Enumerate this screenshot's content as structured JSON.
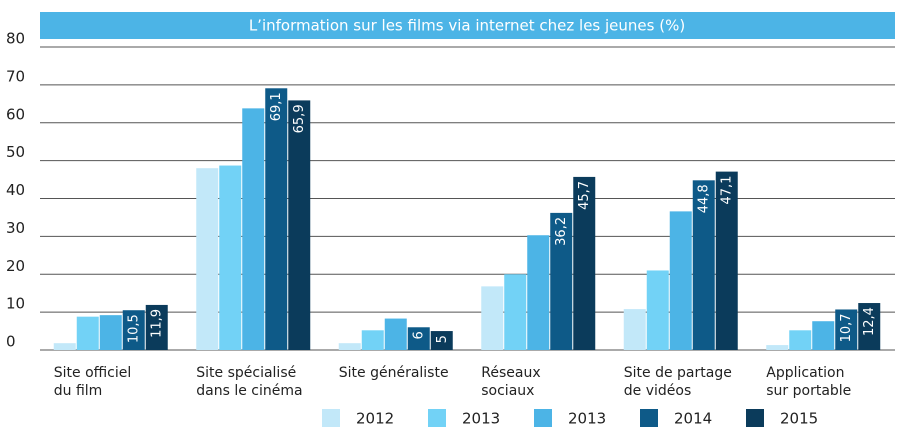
{
  "chart_data": {
    "type": "bar",
    "title": "L’information sur les films via internet chez les jeunes (%)",
    "categories": [
      [
        "Site officiel",
        "du film"
      ],
      [
        "Site spécialisé",
        "dans le cinéma"
      ],
      [
        "Site généraliste"
      ],
      [
        "Réseaux",
        "sociaux"
      ],
      [
        "Site de partage",
        "de vidéos"
      ],
      [
        "Application",
        "sur portable"
      ]
    ],
    "series": [
      {
        "name": "2012",
        "color": "#c2e8f9",
        "values": [
          1.8,
          48,
          1.8,
          16.8,
          10.8,
          1.3
        ]
      },
      {
        "name": "2013",
        "color": "#72d2f6",
        "values": [
          8.8,
          48.7,
          5.2,
          20,
          21,
          5.2
        ]
      },
      {
        "name": "2013",
        "color": "#4cb4e6",
        "values": [
          9.2,
          63.8,
          8.3,
          30.3,
          36.6,
          7.6
        ]
      },
      {
        "name": "2014",
        "color": "#0e5a88",
        "values": [
          10.5,
          69.1,
          6,
          36.2,
          44.8,
          10.7
        ],
        "value_labels": [
          "10,5",
          "69,1",
          "6",
          "36,2",
          "44,8",
          "10,7"
        ]
      },
      {
        "name": "2015",
        "color": "#0b3b5b",
        "values": [
          11.9,
          65.9,
          5,
          45.7,
          47.1,
          12.4
        ],
        "value_labels": [
          "11,9",
          "65,9",
          "5",
          "45,7",
          "47,1",
          "12,4"
        ]
      }
    ],
    "ylim": [
      0,
      80
    ],
    "yticks": [
      0,
      10,
      20,
      30,
      40,
      50,
      60,
      70,
      80
    ],
    "grid": true,
    "legend": "bottom"
  }
}
